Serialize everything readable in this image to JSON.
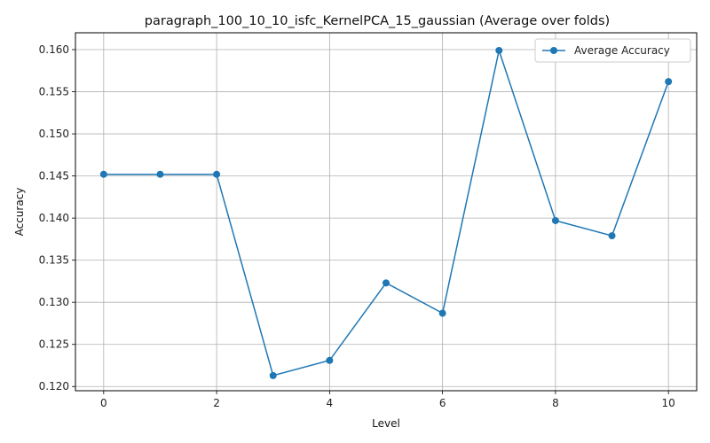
{
  "chart_data": {
    "type": "line",
    "title": "paragraph_100_10_10_isfc_KernelPCA_15_gaussian (Average over folds)",
    "xlabel": "Level",
    "ylabel": "Accuracy",
    "x": [
      0,
      1,
      2,
      3,
      4,
      5,
      6,
      7,
      8,
      9,
      10
    ],
    "xlim": [
      -0.5,
      10.5
    ],
    "ylim": [
      0.1195,
      0.162
    ],
    "xticks": [
      0,
      2,
      4,
      6,
      8,
      10
    ],
    "xtick_labels": [
      "0",
      "2",
      "4",
      "6",
      "8",
      "10"
    ],
    "yticks": [
      0.12,
      0.125,
      0.13,
      0.135,
      0.14,
      0.145,
      0.15,
      0.155,
      0.16
    ],
    "ytick_labels": [
      "0.120",
      "0.125",
      "0.130",
      "0.135",
      "0.140",
      "0.145",
      "0.150",
      "0.155",
      "0.160"
    ],
    "grid": true,
    "legend_position": "top-right",
    "series": [
      {
        "name": "Average Accuracy",
        "color": "#1f77b4",
        "marker": "circle",
        "values": [
          0.1452,
          0.1452,
          0.1452,
          0.1213,
          0.1231,
          0.1323,
          0.1287,
          0.1599,
          0.1397,
          0.1379,
          0.1562
        ]
      }
    ]
  }
}
